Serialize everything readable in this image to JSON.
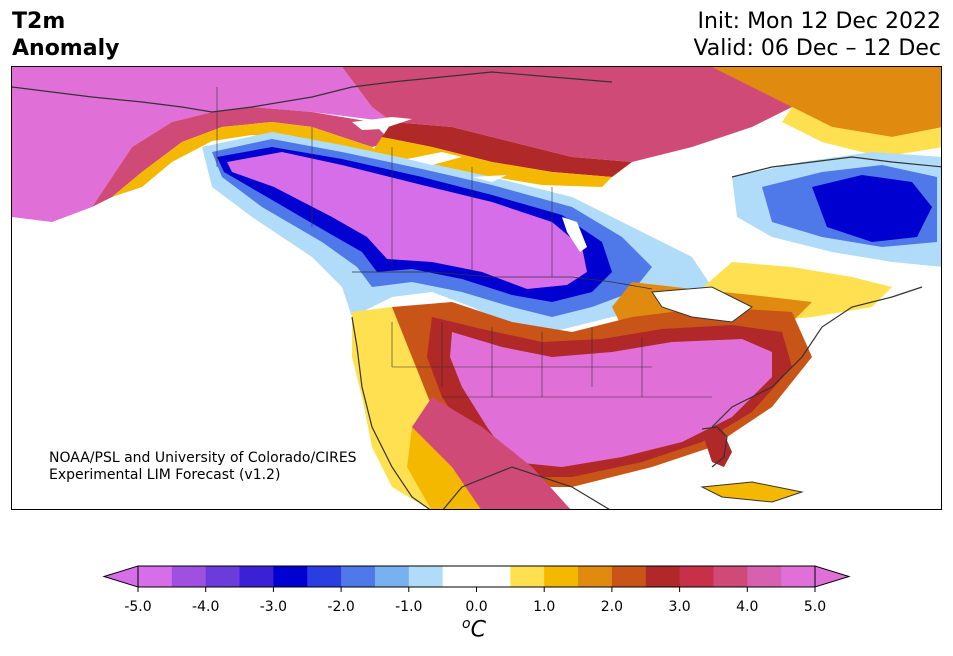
{
  "header": {
    "title_line1": "T2m",
    "title_line2": "Anomaly",
    "init": "Init: Mon 12 Dec 2022",
    "valid": "Valid: 06 Dec – 12 Dec"
  },
  "credit": {
    "line1": "NOAA/PSL and University of Colorado/CIRES",
    "line2": "Experimental LIM Forecast (v1.2)"
  },
  "colorbar": {
    "ticks": [
      "-5.0",
      "-4.0",
      "-3.0",
      "-2.0",
      "-1.0",
      "0.0",
      "1.0",
      "2.0",
      "3.0",
      "4.0",
      "5.0"
    ],
    "unit_base": "C",
    "unit_sup": "o",
    "colors": [
      "#d56ee8",
      "#a050e0",
      "#6b3bdc",
      "#3b20d6",
      "#0000d0",
      "#2a3de0",
      "#4f78e8",
      "#78b0f0",
      "#b0dcfa",
      "#ffffff",
      "#ffffff",
      "#ffe050",
      "#f5b800",
      "#e08a10",
      "#c85418",
      "#b02828",
      "#c83048",
      "#d04a78",
      "#d860b0",
      "#e070d8"
    ]
  },
  "map": {
    "region": "North America",
    "field": "2m temperature anomaly",
    "land_outline_color": "#333333"
  }
}
